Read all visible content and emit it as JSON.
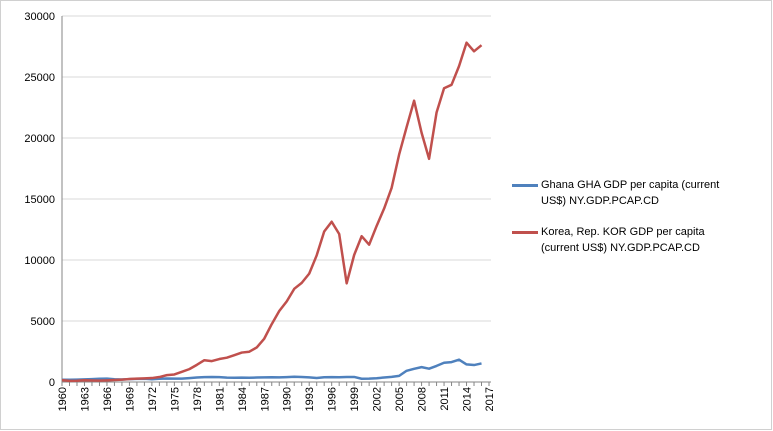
{
  "chart_data": {
    "type": "line",
    "categories": [
      "1960",
      null,
      null,
      "1963",
      null,
      null,
      "1966",
      null,
      null,
      "1969",
      null,
      null,
      "1972",
      null,
      null,
      "1975",
      null,
      null,
      "1978",
      null,
      null,
      "1981",
      null,
      null,
      "1984",
      null,
      null,
      "1987",
      null,
      null,
      "1990",
      null,
      null,
      "1993",
      null,
      null,
      "1996",
      null,
      null,
      "1999",
      null,
      null,
      "2002",
      null,
      null,
      "2005",
      null,
      null,
      "2008",
      null,
      null,
      "2011",
      null,
      null,
      "2014",
      null,
      null,
      "2017"
    ],
    "series": [
      {
        "name": "Ghana GHA GDP per capita (current US$) NY.GDP.PCAP.CD",
        "color": "#4f81bd",
        "values": [
          180,
          185,
          195,
          215,
          235,
          265,
          280,
          230,
          205,
          235,
          255,
          265,
          225,
          265,
          290,
          280,
          275,
          320,
          365,
          400,
          410,
          395,
          360,
          350,
          360,
          350,
          365,
          380,
          385,
          375,
          400,
          430,
          410,
          380,
          330,
          385,
          400,
          390,
          410,
          415,
          265,
          275,
          310,
          370,
          420,
          500,
          920,
          1080,
          1220,
          1090,
          1320,
          1580,
          1630,
          1830,
          1440,
          1390,
          1520,
          null
        ]
      },
      {
        "name": "Korea, Rep. KOR GDP per capita (current US$) NY.GDP.PCAP.CD",
        "color": "#c0504d",
        "values": [
          158,
          94,
          106,
          146,
          124,
          109,
          134,
          161,
          199,
          243,
          279,
          301,
          323,
          407,
          563,
          617,
          834,
          1056,
          1405,
          1784,
          1715,
          1883,
          1993,
          2199,
          2413,
          2482,
          2835,
          3555,
          4748,
          5817,
          6610,
          7637,
          8127,
          8885,
          10385,
          12333,
          13138,
          12132,
          8086,
          10410,
          11948,
          11253,
          12789,
          14219,
          15908,
          18640,
          20888,
          23061,
          20431,
          18292,
          22087,
          24080,
          24359,
          25890,
          27811,
          27105,
          27608,
          null
        ]
      }
    ],
    "ylim": [
      0,
      30000
    ],
    "yticks": [
      0,
      5000,
      10000,
      15000,
      20000,
      25000,
      30000
    ],
    "grid": true,
    "legend": "right"
  }
}
